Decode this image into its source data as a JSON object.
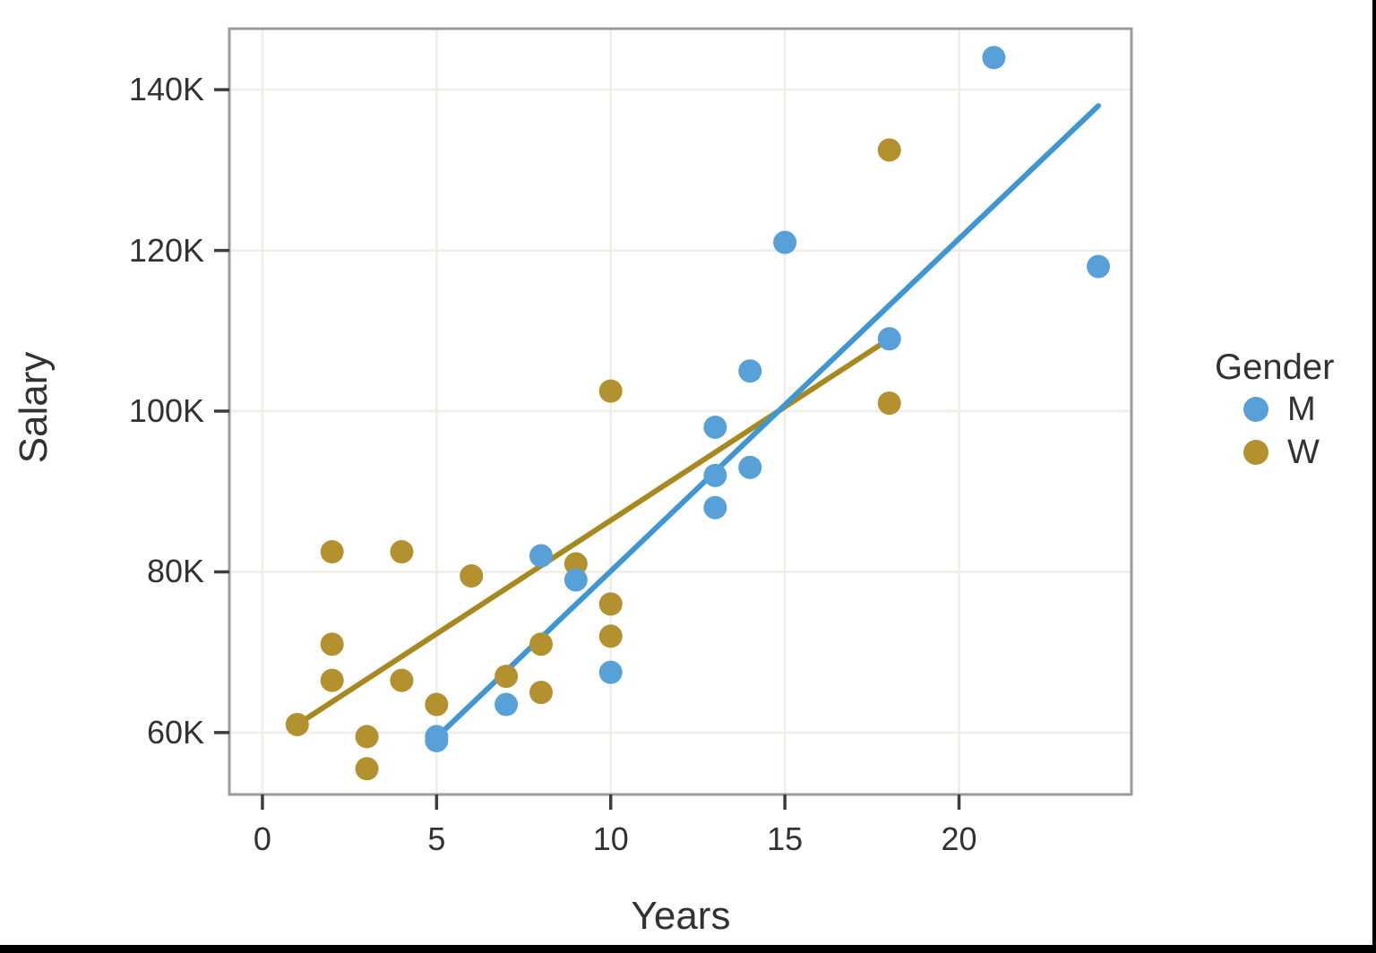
{
  "chart_data": {
    "type": "scatter",
    "title": "",
    "xlabel": "Years",
    "ylabel": "Salary",
    "xlim": [
      -0.95,
      24.95
    ],
    "ylim": [
      52.3,
      147.6
    ],
    "x_ticks": [
      0,
      5,
      10,
      15,
      20
    ],
    "x_tick_labels": [
      "0",
      "5",
      "10",
      "15",
      "20"
    ],
    "y_ticks": [
      60,
      80,
      100,
      120,
      140
    ],
    "y_tick_labels": [
      "60K",
      "80K",
      "100K",
      "120K",
      "140K"
    ],
    "grid": true,
    "legend": {
      "title": "Gender",
      "position": "right-center"
    },
    "series": [
      {
        "name": "M",
        "marker_color": "#57a0d8",
        "line_color": "#3e96d2",
        "points": [
          [
            5,
            59.5
          ],
          [
            5,
            59
          ],
          [
            7,
            63.5
          ],
          [
            8,
            82
          ],
          [
            9,
            79
          ],
          [
            10,
            67.5
          ],
          [
            13,
            98
          ],
          [
            13,
            92
          ],
          [
            13,
            88
          ],
          [
            14,
            105
          ],
          [
            14,
            93
          ],
          [
            15,
            121
          ],
          [
            18,
            109
          ],
          [
            21,
            144
          ],
          [
            24,
            118
          ]
        ],
        "trendline": {
          "start": [
            5,
            59.4
          ],
          "end": [
            24,
            138
          ]
        }
      },
      {
        "name": "W",
        "marker_color": "#b3912f",
        "line_color": "#a8891f",
        "points": [
          [
            1,
            61
          ],
          [
            2,
            82.5
          ],
          [
            2,
            71
          ],
          [
            2,
            66.5
          ],
          [
            3,
            59.5
          ],
          [
            3,
            55.5
          ],
          [
            4,
            82.5
          ],
          [
            4,
            66.5
          ],
          [
            5,
            63.5
          ],
          [
            6,
            79.5
          ],
          [
            7,
            67
          ],
          [
            8,
            71
          ],
          [
            8,
            65
          ],
          [
            9,
            81
          ],
          [
            10,
            102.5
          ],
          [
            10,
            76
          ],
          [
            10,
            72
          ],
          [
            18,
            132.5
          ],
          [
            18,
            101
          ]
        ],
        "trendline": {
          "start": [
            1,
            61
          ],
          "end": [
            18,
            109
          ]
        }
      }
    ],
    "colors": {
      "grid": "#efede6",
      "plot_border": "#9b9b9b",
      "tick": "#3b3e40",
      "text": "#303335",
      "background": "#ffffff",
      "window_edge": "#000000"
    }
  }
}
